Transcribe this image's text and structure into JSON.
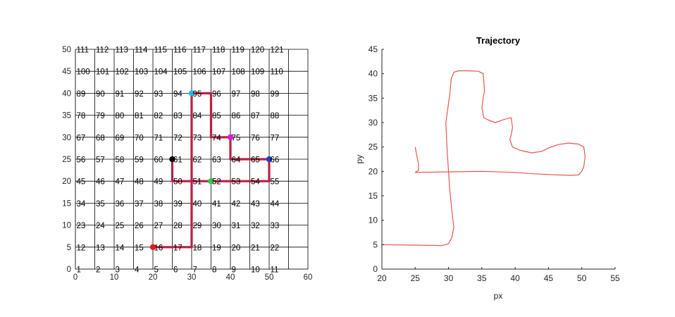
{
  "colors": {
    "axis": "#262626",
    "grid": "#000000",
    "path_red": "#d71920",
    "path_purple": "#7a2b9a",
    "trajectory": "#e8554e",
    "title": "#000000"
  },
  "chart_data": [
    {
      "type": "scatter",
      "title": "",
      "xlabel": "",
      "ylabel": "",
      "xlim": [
        0,
        60
      ],
      "ylim": [
        0,
        50
      ],
      "x_ticks": [
        0,
        10,
        20,
        30,
        40,
        50,
        60
      ],
      "y_ticks": [
        0,
        5,
        10,
        15,
        20,
        25,
        30,
        35,
        40,
        45,
        50
      ],
      "grid_spacing": 5,
      "grid_x_range": [
        0,
        60
      ],
      "grid_labels": {
        "note_rows": "row r (0..10) at y = 5r; column c (0..10) at x = 5c; label = 11*r + c + 1",
        "rows": [
          [
            "1",
            "2",
            "3",
            "4",
            "5",
            "6",
            "7",
            "8",
            "9",
            "10",
            "11"
          ],
          [
            "12",
            "13",
            "14",
            "15",
            "16",
            "17",
            "18",
            "19",
            "20",
            "21",
            "22"
          ],
          [
            "23",
            "24",
            "25",
            "26",
            "27",
            "28",
            "29",
            "30",
            "31",
            "32",
            "33"
          ],
          [
            "34",
            "35",
            "36",
            "37",
            "38",
            "39",
            "40",
            "41",
            "42",
            "43",
            "44"
          ],
          [
            "45",
            "46",
            "47",
            "48",
            "49",
            "50",
            "51",
            "52",
            "53",
            "54",
            "55"
          ],
          [
            "56",
            "57",
            "58",
            "59",
            "60",
            "61",
            "62",
            "63",
            "64",
            "65",
            "66"
          ],
          [
            "67",
            "68",
            "69",
            "70",
            "71",
            "72",
            "73",
            "74",
            "75",
            "76",
            "77"
          ],
          [
            "78",
            "79",
            "80",
            "81",
            "82",
            "83",
            "84",
            "85",
            "86",
            "87",
            "88"
          ],
          [
            "89",
            "90",
            "91",
            "92",
            "93",
            "94",
            "95",
            "96",
            "97",
            "98",
            "99"
          ],
          [
            "100",
            "101",
            "102",
            "103",
            "104",
            "105",
            "106",
            "107",
            "108",
            "109",
            "110"
          ],
          [
            "111",
            "112",
            "113",
            "114",
            "115",
            "116",
            "117",
            "118",
            "119",
            "120",
            "121"
          ]
        ]
      },
      "path": [
        [
          20,
          5
        ],
        [
          30,
          5
        ],
        [
          30,
          40
        ],
        [
          35,
          40
        ],
        [
          35,
          30
        ],
        [
          40,
          30
        ],
        [
          40,
          25
        ],
        [
          50,
          25
        ],
        [
          50,
          20
        ],
        [
          25,
          20
        ],
        [
          25,
          25
        ]
      ],
      "markers": [
        {
          "x": 20,
          "y": 5,
          "color": "#e31a1c"
        },
        {
          "x": 25,
          "y": 25,
          "color": "#000000"
        },
        {
          "x": 30,
          "y": 40,
          "color": "#21b8e8"
        },
        {
          "x": 35,
          "y": 20,
          "color": "#2ecc40"
        },
        {
          "x": 40,
          "y": 30,
          "color": "#d21fd2"
        },
        {
          "x": 50,
          "y": 25,
          "color": "#1f3fd1"
        }
      ]
    },
    {
      "type": "line",
      "title": "Trajectory",
      "xlabel": "px",
      "ylabel": "py",
      "xlim": [
        20,
        55
      ],
      "ylim": [
        0,
        45
      ],
      "x_ticks": [
        20,
        25,
        30,
        35,
        40,
        45,
        50,
        55
      ],
      "y_ticks": [
        0,
        5,
        10,
        15,
        20,
        25,
        30,
        35,
        40,
        45
      ],
      "series": [
        {
          "x": [
            20,
            25,
            29,
            30,
            30.5,
            30.8,
            30.5,
            30.2,
            30,
            29.8,
            29.6,
            30,
            30.2,
            30.4,
            30.8,
            31.5,
            33,
            34.5,
            35.2,
            35.3,
            35.4,
            35.2,
            35,
            35.3,
            36,
            37,
            38.5,
            39.4,
            39.6,
            39.4,
            39.2,
            39.6,
            40.8,
            42.5,
            44,
            45,
            46.5,
            48,
            49.5,
            50.3,
            50.5,
            50.3,
            50,
            49.5,
            48.5,
            46,
            43,
            40,
            35,
            30,
            25,
            25.5,
            25.5,
            25.2,
            25
          ],
          "y": [
            5,
            4.9,
            4.8,
            5.2,
            6.5,
            8.5,
            12,
            16,
            20,
            24,
            30,
            34,
            36,
            39,
            40.3,
            40.6,
            40.6,
            40.5,
            40,
            38.5,
            36.5,
            35,
            33,
            31,
            30.5,
            30,
            30.7,
            31,
            29,
            27.5,
            26.5,
            25,
            24.3,
            23.8,
            24.1,
            24.8,
            25.5,
            25.8,
            25.6,
            25,
            23,
            21,
            20,
            19.3,
            19.2,
            19.3,
            19.5,
            19.8,
            20,
            19.9,
            19.8,
            20.2,
            21.5,
            23.5,
            25
          ]
        }
      ]
    }
  ]
}
